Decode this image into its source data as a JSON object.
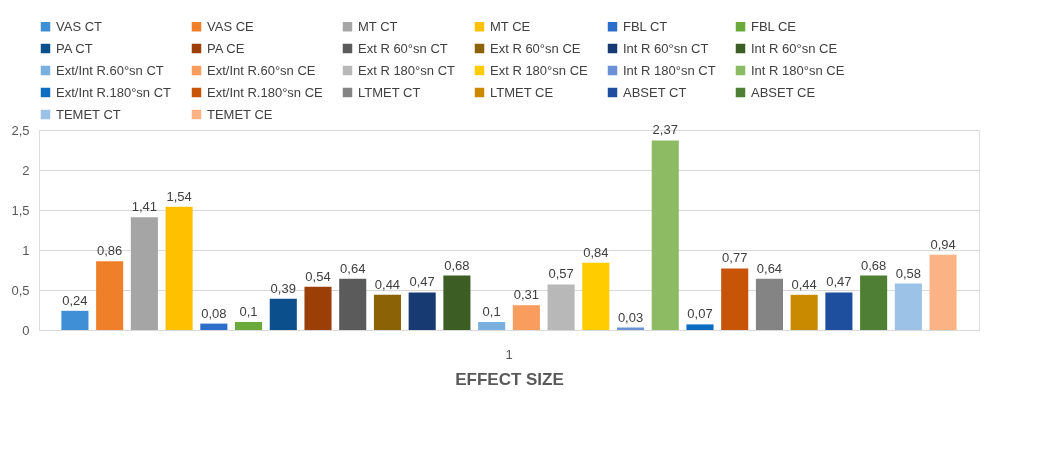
{
  "chart_data": {
    "type": "bar",
    "xlabel": "EFFECT SIZE",
    "categories": [
      "1"
    ],
    "ylim": [
      0,
      2.5
    ],
    "yticks": [
      0,
      {
        "value": 0.5,
        "label": "0,5"
      },
      1,
      {
        "value": 1.5,
        "label": "1,5"
      },
      2,
      {
        "value": 2.5,
        "label": "2,5"
      }
    ],
    "grid": "y",
    "legend": "top",
    "series": [
      {
        "name": "VAS CT",
        "color": "#3f8fd6",
        "values": [
          0.24
        ],
        "value_labels": [
          "0,24"
        ]
      },
      {
        "name": "VAS CE",
        "color": "#f07f2a",
        "values": [
          0.86
        ],
        "value_labels": [
          "0,86"
        ]
      },
      {
        "name": "MT CT",
        "color": "#a5a5a5",
        "values": [
          1.41
        ],
        "value_labels": [
          "1,41"
        ]
      },
      {
        "name": "MT CE",
        "color": "#ffc000",
        "values": [
          1.54
        ],
        "value_labels": [
          "1,54"
        ]
      },
      {
        "name": "FBL CT",
        "color": "#2e6ecb",
        "values": [
          0.08
        ],
        "value_labels": [
          "0,08"
        ]
      },
      {
        "name": "FBL CE",
        "color": "#6aaa3a",
        "values": [
          0.1
        ],
        "value_labels": [
          "0,1"
        ]
      },
      {
        "name": "PA CT",
        "color": "#0b4f8c",
        "values": [
          0.39
        ],
        "value_labels": [
          "0,39"
        ]
      },
      {
        "name": "PA CE",
        "color": "#9b3f06",
        "values": [
          0.54
        ],
        "value_labels": [
          "0,54"
        ]
      },
      {
        "name": "Ext R 60°sn CT",
        "color": "#5b5b5b",
        "values": [
          0.64
        ],
        "value_labels": [
          "0,64"
        ]
      },
      {
        "name": "Ext R 60°sn CE",
        "color": "#8c6206",
        "values": [
          0.44
        ],
        "value_labels": [
          "0,44"
        ]
      },
      {
        "name": "Int R 60°sn CT",
        "color": "#173a72",
        "values": [
          0.47
        ],
        "value_labels": [
          "0,47"
        ]
      },
      {
        "name": "Int R 60°sn CE",
        "color": "#3c5e24",
        "values": [
          0.68
        ],
        "value_labels": [
          "0,68"
        ]
      },
      {
        "name": "Ext/Int R.60°sn CT",
        "color": "#7ab0e0",
        "values": [
          0.1
        ],
        "value_labels": [
          "0,1"
        ]
      },
      {
        "name": "Ext/Int R.60°sn CE",
        "color": "#f89d5e",
        "values": [
          0.31
        ],
        "value_labels": [
          "0,31"
        ]
      },
      {
        "name": "Ext R 180°sn CT",
        "color": "#b8b8b8",
        "values": [
          0.57
        ],
        "value_labels": [
          "0,57"
        ]
      },
      {
        "name": "Ext R 180°sn CE",
        "color": "#ffcc00",
        "values": [
          0.84
        ],
        "value_labels": [
          "0,84"
        ]
      },
      {
        "name": "Int R 180°sn CT",
        "color": "#6b91d6",
        "values": [
          0.03
        ],
        "value_labels": [
          "0,03"
        ]
      },
      {
        "name": "Int R 180°sn CE",
        "color": "#8cbb64",
        "values": [
          2.37
        ],
        "value_labels": [
          "2,37"
        ]
      },
      {
        "name": "Ext/Int R.180°sn CT",
        "color": "#0d6cc0",
        "values": [
          0.07
        ],
        "value_labels": [
          "0,07"
        ]
      },
      {
        "name": "Ext/Int R.180°sn CE",
        "color": "#c85408",
        "values": [
          0.77
        ],
        "value_labels": [
          "0,77"
        ]
      },
      {
        "name": "LTMET CT",
        "color": "#848484",
        "values": [
          0.64
        ],
        "value_labels": [
          "0,64"
        ]
      },
      {
        "name": "LTMET CE",
        "color": "#c98a00",
        "values": [
          0.44
        ],
        "value_labels": [
          "0,44"
        ]
      },
      {
        "name": "ABSET CT",
        "color": "#1e4f9e",
        "values": [
          0.47
        ],
        "value_labels": [
          "0,47"
        ]
      },
      {
        "name": "ABSET CE",
        "color": "#4f7f34",
        "values": [
          0.68
        ],
        "value_labels": [
          "0,68"
        ]
      },
      {
        "name": "TEMET CT",
        "color": "#9dc2e8",
        "values": [
          0.58
        ],
        "value_labels": [
          "0,58"
        ]
      },
      {
        "name": "TEMET CE",
        "color": "#fbb386",
        "values": [
          0.94
        ],
        "value_labels": [
          "0,94"
        ]
      }
    ]
  }
}
